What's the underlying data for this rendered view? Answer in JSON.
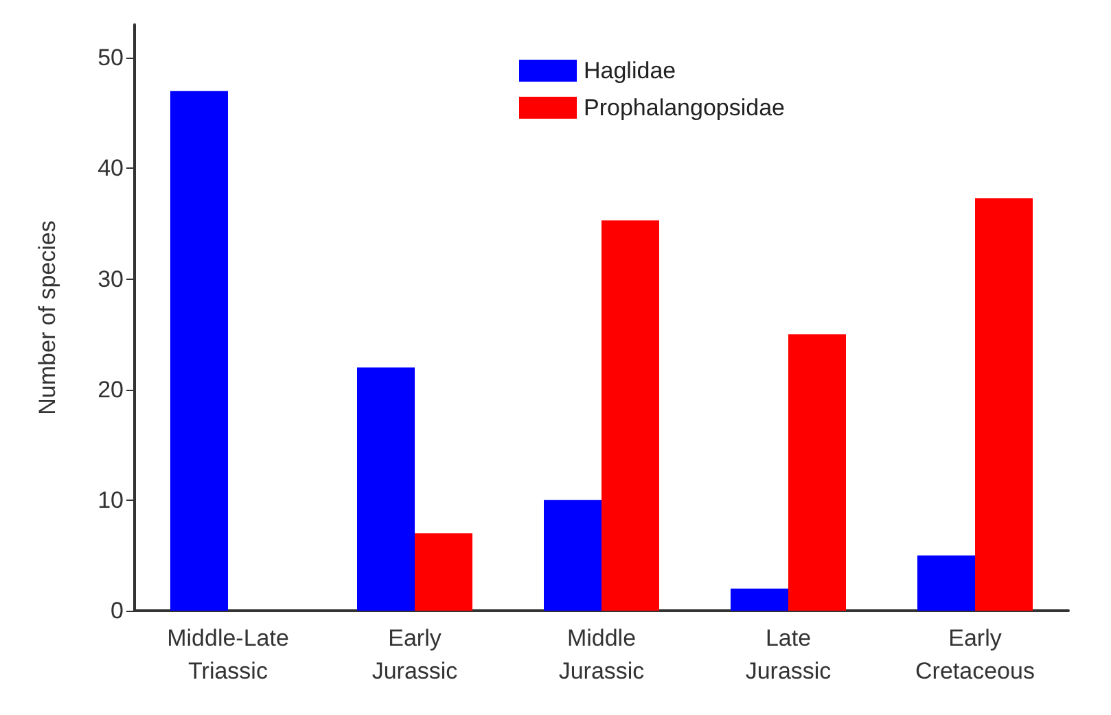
{
  "chart_data": {
    "type": "bar",
    "ylabel": "Number of species",
    "categories": [
      "Middle-Late\nTriassic",
      "Early\nJurassic",
      "Middle\nJurassic",
      "Late\nJurassic",
      "Early\nCretaceous"
    ],
    "series": [
      {
        "name": "Haglidae",
        "color": "#0000ff",
        "values": [
          47,
          22,
          10,
          2,
          5
        ]
      },
      {
        "name": "Prophalangopsidae",
        "color": "#ff0000",
        "values": [
          null,
          7,
          35.3,
          25,
          37.3
        ]
      }
    ],
    "ylim": [
      0,
      53
    ],
    "yticks": [
      0,
      10,
      20,
      30,
      40,
      50
    ],
    "grid": false,
    "legend": "top right"
  }
}
